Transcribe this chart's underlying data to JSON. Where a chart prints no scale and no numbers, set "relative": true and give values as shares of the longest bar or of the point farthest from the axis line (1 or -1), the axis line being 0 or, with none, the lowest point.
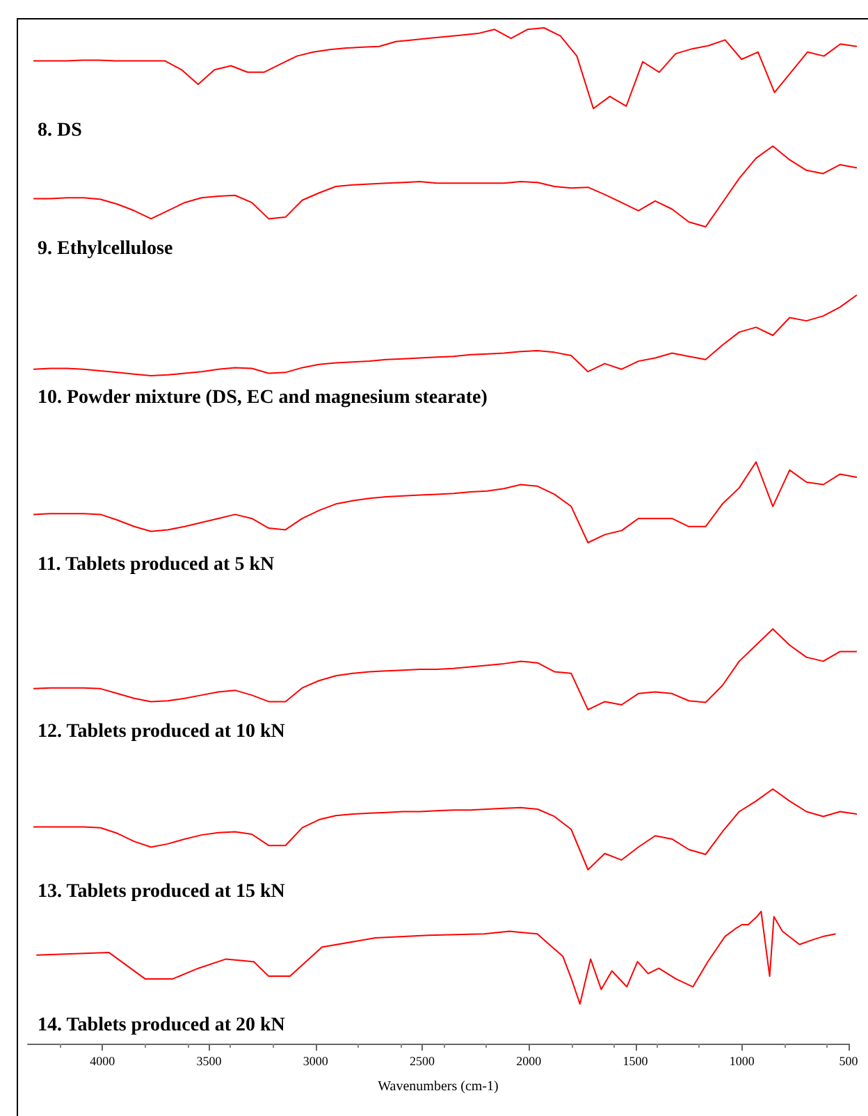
{
  "chart_data": [
    {
      "type": "line",
      "title": "8. DS",
      "relative": true,
      "color": "#ff0000",
      "tick_labels": false,
      "categories": [
        null,
        null,
        null,
        null,
        null,
        null,
        null,
        null,
        null,
        null,
        null,
        null,
        null,
        null,
        null,
        null,
        null,
        null,
        null,
        null,
        null,
        null,
        null,
        null,
        null,
        null,
        null,
        null,
        null,
        null,
        null,
        null,
        null,
        null,
        null,
        null,
        null,
        null,
        null,
        null,
        null,
        null,
        null,
        null,
        null,
        null,
        null,
        null,
        null,
        null,
        null
      ],
      "values": [
        0.59,
        0.59,
        0.59,
        0.6,
        0.6,
        0.59,
        0.59,
        0.59,
        0.59,
        0.48,
        0.3,
        0.48,
        0.53,
        0.45,
        0.45,
        0.55,
        0.65,
        0.7,
        0.73,
        0.75,
        0.76,
        0.77,
        0.83,
        0.85,
        0.87,
        0.89,
        0.91,
        0.93,
        0.98,
        0.87,
        0.98,
        1,
        0.9,
        0.65,
        0,
        0.15,
        0.03,
        0.58,
        0.45,
        0.68,
        0.74,
        0.78,
        0.85,
        0.61,
        0.7,
        0.2,
        0.45,
        0.7,
        0.65,
        0.8,
        0.77
      ]
    },
    {
      "type": "line",
      "title": "9. Ethylcellulose",
      "relative": true,
      "color": "#ff0000",
      "tick_labels": false,
      "categories": [
        null,
        null,
        null,
        null,
        null,
        null,
        null,
        null,
        null,
        null,
        null,
        null,
        null,
        null,
        null,
        null,
        null,
        null,
        null,
        null,
        null,
        null,
        null,
        null,
        null,
        null,
        null,
        null,
        null,
        null,
        null,
        null,
        null,
        null,
        null,
        null,
        null,
        null,
        null,
        null,
        null,
        null,
        null,
        null,
        null,
        null,
        null,
        null,
        null,
        null
      ],
      "values": [
        0.35,
        0.35,
        0.36,
        0.36,
        0.34,
        0.28,
        0.2,
        0.1,
        0.2,
        0.3,
        0.36,
        0.38,
        0.39,
        0.3,
        0.1,
        0.12,
        0.33,
        0.42,
        0.5,
        0.52,
        0.53,
        0.54,
        0.55,
        0.56,
        0.54,
        0.54,
        0.54,
        0.54,
        0.54,
        0.56,
        0.55,
        0.5,
        0.48,
        0.49,
        0.4,
        0.3,
        0.2,
        0.32,
        0.22,
        0.06,
        0,
        0.3,
        0.6,
        0.85,
        1,
        0.83,
        0.7,
        0.66,
        0.77,
        0.73
      ]
    },
    {
      "type": "line",
      "title": "10. Powder mixture (DS, EC and magnesium stearate)",
      "relative": true,
      "color": "#ff0000",
      "tick_labels": false,
      "categories": [
        null,
        null,
        null,
        null,
        null,
        null,
        null,
        null,
        null,
        null,
        null,
        null,
        null,
        null,
        null,
        null,
        null,
        null,
        null,
        null,
        null,
        null,
        null,
        null,
        null,
        null,
        null,
        null,
        null,
        null,
        null,
        null,
        null,
        null,
        null,
        null,
        null,
        null,
        null,
        null,
        null,
        null,
        null,
        null,
        null,
        null,
        null,
        null,
        null,
        null
      ],
      "values": [
        0.08,
        0.09,
        0.09,
        0.08,
        0.06,
        0.04,
        0.02,
        0,
        0.01,
        0.03,
        0.05,
        0.08,
        0.1,
        0.09,
        0.03,
        0.04,
        0.1,
        0.14,
        0.16,
        0.17,
        0.18,
        0.2,
        0.21,
        0.22,
        0.23,
        0.24,
        0.26,
        0.27,
        0.28,
        0.3,
        0.31,
        0.29,
        0.25,
        0.05,
        0.15,
        0.08,
        0.18,
        0.22,
        0.28,
        0.24,
        0.2,
        0.38,
        0.54,
        0.6,
        0.5,
        0.72,
        0.68,
        0.74,
        0.85,
        1
      ]
    },
    {
      "type": "line",
      "title": "11. Tablets produced at 5 kN",
      "relative": true,
      "color": "#ff0000",
      "tick_labels": false,
      "categories": [
        null,
        null,
        null,
        null,
        null,
        null,
        null,
        null,
        null,
        null,
        null,
        null,
        null,
        null,
        null,
        null,
        null,
        null,
        null,
        null,
        null,
        null,
        null,
        null,
        null,
        null,
        null,
        null,
        null,
        null,
        null,
        null,
        null,
        null,
        null,
        null,
        null,
        null,
        null,
        null,
        null,
        null,
        null,
        null,
        null,
        null,
        null,
        null,
        null,
        null
      ],
      "values": [
        0.35,
        0.36,
        0.36,
        0.36,
        0.35,
        0.28,
        0.2,
        0.14,
        0.16,
        0.2,
        0.25,
        0.3,
        0.35,
        0.3,
        0.18,
        0.16,
        0.3,
        0.4,
        0.48,
        0.52,
        0.55,
        0.57,
        0.58,
        0.59,
        0.6,
        0.61,
        0.63,
        0.64,
        0.67,
        0.72,
        0.7,
        0.6,
        0.45,
        0,
        0.1,
        0.15,
        0.3,
        0.3,
        0.3,
        0.2,
        0.2,
        0.48,
        0.68,
        1,
        0.45,
        0.9,
        0.75,
        0.72,
        0.85,
        0.81
      ]
    },
    {
      "type": "line",
      "title": "12. Tablets produced at 10 kN",
      "relative": true,
      "color": "#ff0000",
      "tick_labels": false,
      "categories": [
        null,
        null,
        null,
        null,
        null,
        null,
        null,
        null,
        null,
        null,
        null,
        null,
        null,
        null,
        null,
        null,
        null,
        null,
        null,
        null,
        null,
        null,
        null,
        null,
        null,
        null,
        null,
        null,
        null,
        null,
        null,
        null,
        null,
        null,
        null,
        null,
        null,
        null,
        null,
        null,
        null,
        null,
        null,
        null,
        null,
        null,
        null,
        null,
        null,
        null
      ],
      "values": [
        0.26,
        0.27,
        0.27,
        0.27,
        0.26,
        0.2,
        0.14,
        0.1,
        0.11,
        0.14,
        0.18,
        0.22,
        0.24,
        0.18,
        0.1,
        0.1,
        0.27,
        0.36,
        0.42,
        0.45,
        0.47,
        0.48,
        0.49,
        0.5,
        0.5,
        0.51,
        0.53,
        0.55,
        0.57,
        0.6,
        0.58,
        0.47,
        0.45,
        0,
        0.1,
        0.06,
        0.2,
        0.22,
        0.2,
        0.11,
        0.09,
        0.3,
        0.6,
        0.8,
        1,
        0.8,
        0.65,
        0.6,
        0.72,
        0.72
      ]
    },
    {
      "type": "line",
      "title": "13. Tablets produced at 15 kN",
      "relative": true,
      "color": "#ff0000",
      "tick_labels": false,
      "categories": [
        null,
        null,
        null,
        null,
        null,
        null,
        null,
        null,
        null,
        null,
        null,
        null,
        null,
        null,
        null,
        null,
        null,
        null,
        null,
        null,
        null,
        null,
        null,
        null,
        null,
        null,
        null,
        null,
        null,
        null,
        null,
        null,
        null,
        null,
        null,
        null,
        null,
        null,
        null,
        null,
        null,
        null,
        null,
        null,
        null,
        null,
        null,
        null,
        null,
        null
      ],
      "values": [
        0.53,
        0.53,
        0.53,
        0.53,
        0.52,
        0.45,
        0.35,
        0.28,
        0.32,
        0.38,
        0.43,
        0.46,
        0.47,
        0.44,
        0.3,
        0.3,
        0.52,
        0.62,
        0.67,
        0.69,
        0.7,
        0.71,
        0.72,
        0.72,
        0.73,
        0.74,
        0.74,
        0.75,
        0.76,
        0.77,
        0.75,
        0.66,
        0.5,
        0,
        0.2,
        0.12,
        0.28,
        0.42,
        0.38,
        0.25,
        0.19,
        0.47,
        0.72,
        0.85,
        1,
        0.85,
        0.72,
        0.66,
        0.72,
        0.69
      ]
    },
    {
      "type": "line",
      "title": "14. Tablets produced at 20 kN",
      "relative": true,
      "color": "#ff0000",
      "tick_labels": "x",
      "xlim": [
        4350,
        500
      ],
      "xticks": [
        4000,
        3500,
        3000,
        2500,
        2000,
        1500,
        1000,
        500
      ],
      "xlabel": "Wavenumbers (cm-1)",
      "x": [
        4310,
        3970,
        3800,
        3670,
        3550,
        3420,
        3290,
        3220,
        3120,
        2970,
        2720,
        2470,
        2210,
        2090,
        1960,
        1890,
        1840,
        1800,
        1760,
        1710,
        1660,
        1610,
        1540,
        1490,
        1440,
        1390,
        1310,
        1230,
        1160,
        1080,
        1030,
        1000,
        970,
        930,
        910,
        870,
        850,
        810,
        730,
        660,
        620,
        560
      ],
      "values": [
        0.67,
        0.69,
        0.49,
        0.49,
        0.57,
        0.64,
        0.62,
        0.51,
        0.51,
        0.73,
        0.8,
        0.82,
        0.83,
        0.85,
        0.83,
        0.73,
        0.66,
        0.49,
        0.3,
        0.64,
        0.41,
        0.55,
        0.43,
        0.62,
        0.53,
        0.57,
        0.49,
        0.43,
        0.62,
        0.81,
        0.87,
        0.9,
        0.9,
        0.96,
        1,
        0.51,
        0.96,
        0.85,
        0.75,
        0.79,
        0.81,
        0.83
      ]
    }
  ]
}
